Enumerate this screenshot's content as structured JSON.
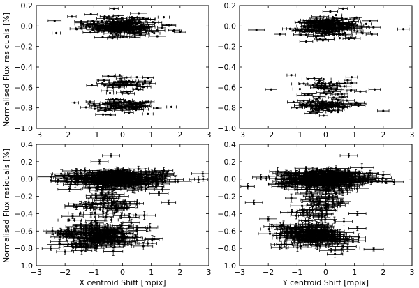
{
  "figure": {
    "ylabel": "Normalised Flux residuals [%]"
  },
  "chart_data": [
    {
      "type": "scatter",
      "panel": "top-left",
      "xlabel": "",
      "xlim": [
        -3,
        3
      ],
      "ylim": [
        -1.0,
        0.2
      ],
      "xticks": [
        "−3",
        "−2",
        "−1",
        "0",
        "1",
        "2",
        "3"
      ],
      "yticks": [
        "0.2",
        "0.0",
        "−0.2",
        "−0.4",
        "−0.6",
        "−0.8",
        "−1.0"
      ],
      "ytick_values": [
        0.2,
        0.0,
        -0.2,
        -0.4,
        -0.6,
        -0.8,
        -1.0
      ],
      "xtick_values": [
        -3,
        -2,
        -1,
        0,
        1,
        2,
        3
      ],
      "error_bars": "horizontal",
      "clusters": [
        {
          "cx": -0.1,
          "cy": 0.0,
          "sx": 0.65,
          "sy": 0.045,
          "n": 230,
          "xerr": 0.22
        },
        {
          "cx": -0.1,
          "cy": -0.58,
          "sx": 0.45,
          "sy": 0.045,
          "n": 55,
          "xerr": 0.2
        },
        {
          "cx": -0.1,
          "cy": -0.78,
          "sx": 0.55,
          "sy": 0.03,
          "n": 90,
          "xerr": 0.2
        }
      ],
      "points": [
        {
          "x": 0.6,
          "y": -0.05,
          "xerr": 0.2
        },
        {
          "x": 1.1,
          "y": -0.07,
          "xerr": 0.2
        },
        {
          "x": 1.8,
          "y": -0.04,
          "xerr": 0.2
        },
        {
          "x": 2.0,
          "y": -0.06,
          "xerr": 0.2
        },
        {
          "x": -1.6,
          "y": -0.03,
          "xerr": 0.2
        },
        {
          "x": -0.3,
          "y": 0.17,
          "xerr": 0.15
        },
        {
          "x": 0.6,
          "y": -0.09,
          "xerr": 0.2
        },
        {
          "x": -0.5,
          "y": -0.49,
          "xerr": 0.2
        },
        {
          "x": -0.1,
          "y": -0.48,
          "xerr": 0.15
        },
        {
          "x": 0.5,
          "y": -0.5,
          "xerr": 0.2
        },
        {
          "x": -1.0,
          "y": -0.76,
          "xerr": 0.2
        },
        {
          "x": 0.9,
          "y": -0.74,
          "xerr": 0.2
        },
        {
          "x": 0.6,
          "y": -0.79,
          "xerr": 0.2
        }
      ]
    },
    {
      "type": "scatter",
      "panel": "top-right",
      "xlabel": "",
      "xlim": [
        -3,
        3
      ],
      "ylim": [
        -1.0,
        0.2
      ],
      "xticks": [
        "−3",
        "−2",
        "−1",
        "0",
        "1",
        "2",
        "3"
      ],
      "yticks": [
        "0.2",
        "0.0",
        "−0.2",
        "−0.4",
        "−0.6",
        "−0.8",
        "−1.0"
      ],
      "ytick_values": [
        0.2,
        0.0,
        -0.2,
        -0.4,
        -0.6,
        -0.8,
        -1.0
      ],
      "xtick_values": [
        -3,
        -2,
        -1,
        0,
        1,
        2,
        3
      ],
      "error_bars": "horizontal",
      "clusters": [
        {
          "cx": 0.0,
          "cy": 0.0,
          "sx": 0.6,
          "sy": 0.045,
          "n": 230,
          "xerr": 0.22
        },
        {
          "cx": 0.0,
          "cy": -0.6,
          "sx": 0.5,
          "sy": 0.05,
          "n": 50,
          "xerr": 0.2
        },
        {
          "cx": 0.0,
          "cy": -0.78,
          "sx": 0.5,
          "sy": 0.03,
          "n": 90,
          "xerr": 0.2
        }
      ],
      "points": [
        {
          "x": 2.7,
          "y": -0.03,
          "xerr": 0.2
        },
        {
          "x": 1.6,
          "y": -0.08,
          "xerr": 0.2
        },
        {
          "x": 1.1,
          "y": -0.05,
          "xerr": 0.2
        },
        {
          "x": -1.6,
          "y": -0.08,
          "xerr": 0.2
        },
        {
          "x": 0.6,
          "y": 0.17,
          "xerr": 0.15
        },
        {
          "x": 1.0,
          "y": -0.12,
          "xerr": 0.2
        },
        {
          "x": -0.1,
          "y": -0.14,
          "xerr": 0.2
        },
        {
          "x": -1.2,
          "y": -0.48,
          "xerr": 0.15
        },
        {
          "x": -1.9,
          "y": -0.62,
          "xerr": 0.2
        },
        {
          "x": 1.7,
          "y": -0.62,
          "xerr": 0.2
        },
        {
          "x": 1.2,
          "y": -0.64,
          "xerr": 0.2
        },
        {
          "x": 2.0,
          "y": -0.83,
          "xerr": 0.2
        },
        {
          "x": 1.2,
          "y": -0.76,
          "xerr": 0.2
        },
        {
          "x": 0.9,
          "y": -0.5,
          "xerr": 0.2
        },
        {
          "x": -1.0,
          "y": -0.8,
          "xerr": 0.2
        }
      ]
    },
    {
      "type": "scatter",
      "panel": "bottom-left",
      "xlabel": "X centroid Shift [mpix]",
      "xlim": [
        -3,
        3
      ],
      "ylim": [
        -1.0,
        0.4
      ],
      "xticks": [
        "−3",
        "−2",
        "−1",
        "0",
        "1",
        "2",
        "3"
      ],
      "yticks": [
        "0.4",
        "0.2",
        "0.0",
        "−0.2",
        "−0.4",
        "−0.6",
        "−0.8",
        "−1.0"
      ],
      "ytick_values": [
        0.4,
        0.2,
        0.0,
        -0.2,
        -0.4,
        -0.6,
        -0.8,
        -1.0
      ],
      "xtick_values": [
        -3,
        -2,
        -1,
        0,
        1,
        2,
        3
      ],
      "error_bars": "both",
      "clusters": [
        {
          "cx": -0.2,
          "cy": 0.0,
          "sx": 0.85,
          "sy": 0.05,
          "n": 330,
          "xerr": 0.35
        },
        {
          "cx": -0.6,
          "cy": -0.3,
          "sx": 0.5,
          "sy": 0.12,
          "n": 70,
          "xerr": 0.3
        },
        {
          "cx": -0.8,
          "cy": -0.65,
          "sx": 0.7,
          "sy": 0.07,
          "n": 200,
          "xerr": 0.35
        }
      ],
      "points": [
        {
          "x": 2.8,
          "y": 0.0,
          "xerr": 0.3
        },
        {
          "x": 1.6,
          "y": -0.27,
          "xerr": 0.25
        },
        {
          "x": -0.4,
          "y": 0.27,
          "xerr": 0.3
        },
        {
          "x": -0.8,
          "y": 0.2,
          "xerr": 0.3
        },
        {
          "x": -2.5,
          "y": -0.8,
          "xerr": 0.3
        },
        {
          "x": -2.0,
          "y": -0.84,
          "xerr": 0.3
        },
        {
          "x": 1.1,
          "y": -0.69,
          "xerr": 0.3
        },
        {
          "x": -2.2,
          "y": -0.72,
          "xerr": 0.3
        },
        {
          "x": 0.5,
          "y": -0.56,
          "xerr": 0.3
        }
      ]
    },
    {
      "type": "scatter",
      "panel": "bottom-right",
      "xlabel": "Y centroid Shift [mpix]",
      "xlim": [
        -3,
        3
      ],
      "ylim": [
        -1.0,
        0.4
      ],
      "xticks": [
        "−3",
        "−2",
        "−1",
        "0",
        "1",
        "2",
        "3"
      ],
      "yticks": [
        "0.4",
        "0.2",
        "0.0",
        "−0.2",
        "−0.4",
        "−0.6",
        "−0.8",
        "−1.0"
      ],
      "ytick_values": [
        0.4,
        0.2,
        0.0,
        -0.2,
        -0.4,
        -0.6,
        -0.8,
        -1.0
      ],
      "xtick_values": [
        -3,
        -2,
        -1,
        0,
        1,
        2,
        3
      ],
      "error_bars": "both",
      "clusters": [
        {
          "cx": 0.0,
          "cy": 0.0,
          "sx": 0.8,
          "sy": 0.05,
          "n": 330,
          "xerr": 0.35
        },
        {
          "cx": -0.3,
          "cy": -0.3,
          "sx": 0.45,
          "sy": 0.12,
          "n": 70,
          "xerr": 0.3
        },
        {
          "cx": -0.4,
          "cy": -0.65,
          "sx": 0.65,
          "sy": 0.07,
          "n": 200,
          "xerr": 0.35
        }
      ],
      "points": [
        {
          "x": -2.5,
          "y": -0.27,
          "xerr": 0.3
        },
        {
          "x": 0.8,
          "y": 0.27,
          "xerr": 0.3
        },
        {
          "x": 2.1,
          "y": -0.03,
          "xerr": 0.3
        },
        {
          "x": 1.1,
          "y": -0.4,
          "xerr": 0.3
        },
        {
          "x": -1.6,
          "y": -0.79,
          "xerr": 0.3
        },
        {
          "x": 1.1,
          "y": -0.57,
          "xerr": 0.3
        },
        {
          "x": -2.0,
          "y": -0.46,
          "xerr": 0.3
        }
      ]
    }
  ]
}
